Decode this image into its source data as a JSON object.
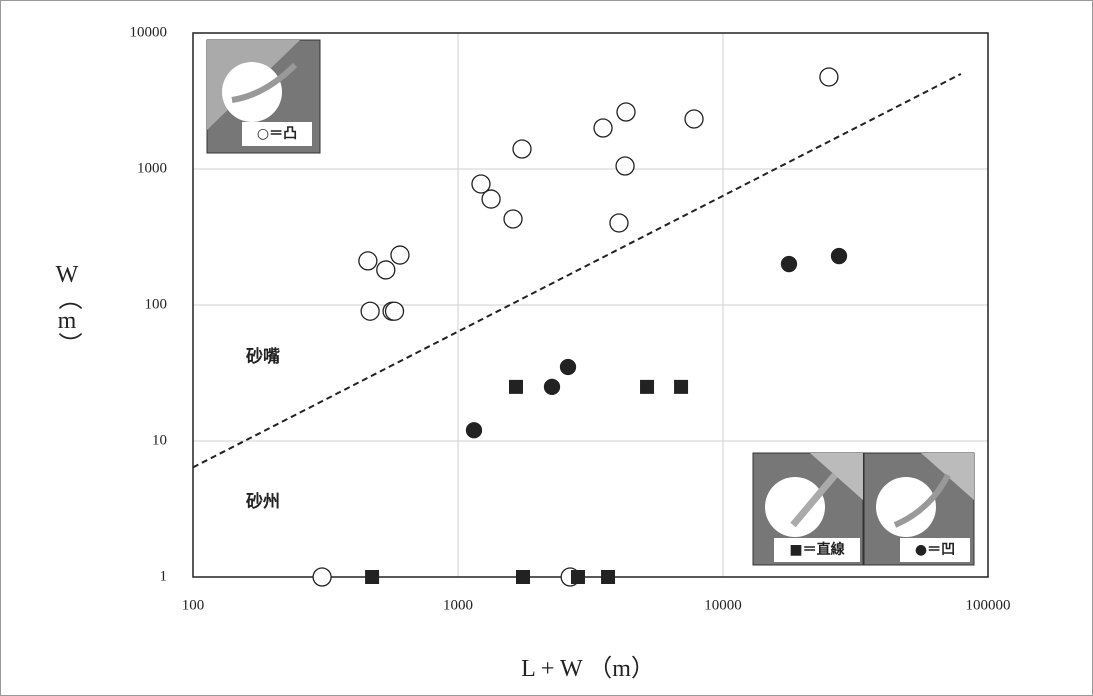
{
  "chart_data": {
    "type": "scatter",
    "xlabel": "L + W （m）",
    "ylabel": "W（m）",
    "xscale": "log",
    "yscale": "log",
    "xlim": [
      100,
      100000
    ],
    "ylim": [
      1,
      10000
    ],
    "xticks": [
      100,
      1000,
      10000,
      100000
    ],
    "yticks": [
      1,
      10,
      100,
      1000,
      10000
    ],
    "grid": true,
    "annotations": [
      "砂嘴",
      "砂州"
    ],
    "inset_labels": [
      "○＝凸",
      "■＝直線",
      "●＝凹"
    ],
    "series": [
      {
        "marker": "circle",
        "filled": false,
        "color": "#222222",
        "x": [
          307,
          2650,
          457,
          534,
          604,
          466,
          564,
          576,
          1221,
          1333,
          1613,
          1744,
          3526,
          4305,
          4270,
          4050,
          7775,
          25100
        ],
        "values": [
          1,
          1,
          211,
          181,
          233,
          90,
          90,
          90,
          776,
          601,
          429,
          1403,
          2002,
          2625,
          1052,
          401,
          2332,
          4750
        ]
      },
      {
        "marker": "square",
        "filled": true,
        "color": "#222222",
        "x": [
          474,
          1759,
          2836,
          3683,
          1655,
          5168,
          6946
        ],
        "values": [
          1,
          1,
          1,
          1,
          25,
          25,
          25
        ]
      },
      {
        "marker": "circle",
        "filled": true,
        "color": "#222222",
        "x": [
          1149,
          2263,
          2601,
          17740,
          27400
        ],
        "values": [
          12,
          25,
          35,
          200,
          229
        ]
      },
      {
        "marker": "line",
        "dashed": true,
        "color": "#222222",
        "x": [
          100,
          79000
        ],
        "values": [
          6.4,
          5000
        ]
      }
    ]
  }
}
